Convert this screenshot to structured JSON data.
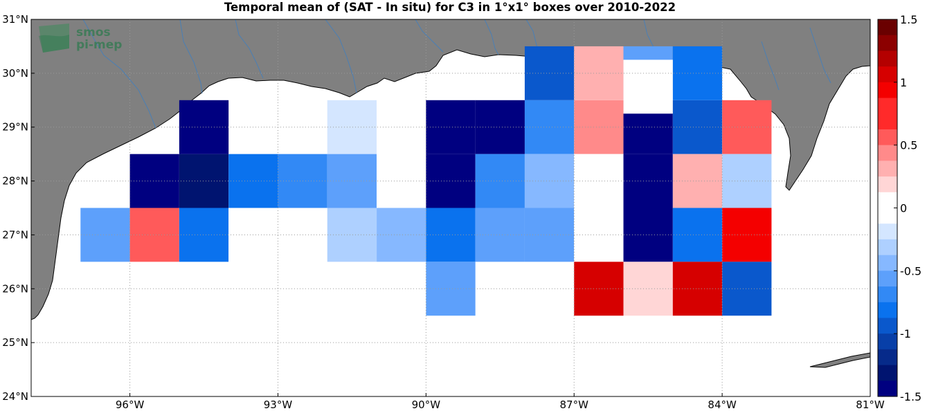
{
  "title": "Temporal mean of (SAT - In situ) for C3 in 1°x1° boxes over 2010-2022",
  "logo": {
    "line1": "smos",
    "line2": "pi-mep"
  },
  "colors": {
    "land": "#808080",
    "ocean": "#ffffff",
    "river": "#4a7fb5",
    "grid": "#9a9a9a",
    "pos": [
      "#ffffff",
      "#ffd6d6",
      "#ffb0b0",
      "#ff8a8a",
      "#ff5a5a",
      "#ff2a2a",
      "#f40000",
      "#d60000",
      "#b40000",
      "#8c0000",
      "#6a0000"
    ],
    "neg": [
      "#ffffff",
      "#d4e6ff",
      "#aed0ff",
      "#86b8ff",
      "#5da0fb",
      "#3289f5",
      "#0a72ee",
      "#0a58cc",
      "#083fa8",
      "#062a8a",
      "#001470",
      "#000080"
    ]
  },
  "map": {
    "lon_range": [
      -98,
      -81
    ],
    "lat_range": [
      24,
      31
    ],
    "x_ticks": [
      {
        "lon": -96,
        "label": "96°W"
      },
      {
        "lon": -93,
        "label": "93°W"
      },
      {
        "lon": -90,
        "label": "90°W"
      },
      {
        "lon": -87,
        "label": "87°W"
      },
      {
        "lon": -84,
        "label": "84°W"
      },
      {
        "lon": -81,
        "label": "81°W"
      }
    ],
    "y_ticks": [
      {
        "lat": 24,
        "label": "24°N"
      },
      {
        "lat": 25,
        "label": "25°N"
      },
      {
        "lat": 26,
        "label": "26°N"
      },
      {
        "lat": 27,
        "label": "27°N"
      },
      {
        "lat": 28,
        "label": "28°N"
      },
      {
        "lat": 29,
        "label": "29°N"
      },
      {
        "lat": 30,
        "label": "30°N"
      },
      {
        "lat": 31,
        "label": "31°N"
      }
    ],
    "grid": true
  },
  "colorbar": {
    "range": [
      -1.5,
      1.5
    ],
    "labels": [
      "1.5",
      "1",
      "0.5",
      "0",
      "-0.5",
      "-1",
      "-1.5"
    ],
    "label_values": [
      1.5,
      1,
      0.5,
      0,
      -0.5,
      -1,
      -1.5
    ]
  },
  "chart_data": {
    "type": "heatmap",
    "title": "Temporal mean of (SAT - In situ) for C3 in 1°x1° boxes over 2010-2022",
    "xlabel": "",
    "ylabel": "",
    "x_range": [
      -98,
      -81
    ],
    "y_range": [
      24,
      31
    ],
    "value_range": [
      -1.5,
      1.5
    ],
    "cell_size_deg": 1,
    "boxes": [
      {
        "lon": -94.5,
        "lat": 29.0,
        "value": -1.5
      },
      {
        "lon": -92.5,
        "lat": 29.0,
        "value": 0.0
      },
      {
        "lon": -91.5,
        "lat": 29.0,
        "value": -0.15
      },
      {
        "lon": -90.5,
        "lat": 29.0,
        "value": 0.0
      },
      {
        "lon": -89.5,
        "lat": 29.0,
        "value": -1.5
      },
      {
        "lon": -88.5,
        "lat": 29.0,
        "value": -1.5
      },
      {
        "lon": -87.5,
        "lat": 29.0,
        "value": -0.7
      },
      {
        "lon": -86.5,
        "lat": 29.0,
        "value": 0.45
      },
      {
        "lon": -85.5,
        "lat": 29.0,
        "value": -1.5
      },
      {
        "lon": -84.5,
        "lat": 29.0,
        "value": -0.9
      },
      {
        "lon": -83.5,
        "lat": 29.0,
        "value": 0.6
      },
      {
        "lon": -87.5,
        "lat": 30.0,
        "value": -0.95
      },
      {
        "lon": -86.5,
        "lat": 30.0,
        "value": 0.35
      },
      {
        "lon": -85.5,
        "lat": 30.0,
        "value": -0.5
      },
      {
        "lon": -84.5,
        "lat": 30.0,
        "value": -0.75
      },
      {
        "lon": -85.5,
        "lat": 29.75,
        "value": 0.0
      },
      {
        "lon": -95.5,
        "lat": 28.0,
        "value": -1.5
      },
      {
        "lon": -94.5,
        "lat": 28.0,
        "value": -1.35
      },
      {
        "lon": -93.5,
        "lat": 28.0,
        "value": -0.8
      },
      {
        "lon": -92.5,
        "lat": 28.0,
        "value": -0.7
      },
      {
        "lon": -91.5,
        "lat": 28.0,
        "value": -0.5
      },
      {
        "lon": -90.5,
        "lat": 28.0,
        "value": 0.0
      },
      {
        "lon": -89.5,
        "lat": 28.0,
        "value": -1.5
      },
      {
        "lon": -88.5,
        "lat": 28.0,
        "value": -0.7
      },
      {
        "lon": -87.5,
        "lat": 28.0,
        "value": -0.35
      },
      {
        "lon": -86.5,
        "lat": 28.0,
        "value": 0.0
      },
      {
        "lon": -85.5,
        "lat": 28.0,
        "value": -1.5
      },
      {
        "lon": -84.5,
        "lat": 28.0,
        "value": 0.35
      },
      {
        "lon": -83.5,
        "lat": 28.0,
        "value": -0.25
      },
      {
        "lon": -96.5,
        "lat": 27.0,
        "value": -0.6
      },
      {
        "lon": -95.5,
        "lat": 27.0,
        "value": 0.6
      },
      {
        "lon": -94.5,
        "lat": 27.0,
        "value": -0.8
      },
      {
        "lon": -93.5,
        "lat": 27.0,
        "value": 0.0
      },
      {
        "lon": -92.5,
        "lat": 27.0,
        "value": 0.0
      },
      {
        "lon": -91.5,
        "lat": 27.0,
        "value": -0.3
      },
      {
        "lon": -90.5,
        "lat": 27.0,
        "value": -0.45
      },
      {
        "lon": -89.5,
        "lat": 27.0,
        "value": -0.85
      },
      {
        "lon": -88.5,
        "lat": 27.0,
        "value": -0.6
      },
      {
        "lon": -87.5,
        "lat": 27.0,
        "value": -0.6
      },
      {
        "lon": -86.5,
        "lat": 27.0,
        "value": 0.0
      },
      {
        "lon": -85.5,
        "lat": 27.0,
        "value": -1.5
      },
      {
        "lon": -84.5,
        "lat": 27.0,
        "value": -0.8
      },
      {
        "lon": -83.5,
        "lat": 27.0,
        "value": 0.9
      },
      {
        "lon": -89.5,
        "lat": 26.0,
        "value": -0.55
      },
      {
        "lon": -86.5,
        "lat": 26.0,
        "value": 1.1
      },
      {
        "lon": -85.5,
        "lat": 26.0,
        "value": 0.15
      },
      {
        "lon": -84.5,
        "lat": 26.0,
        "value": 1.1
      },
      {
        "lon": -83.5,
        "lat": 26.0,
        "value": -0.9
      }
    ]
  }
}
